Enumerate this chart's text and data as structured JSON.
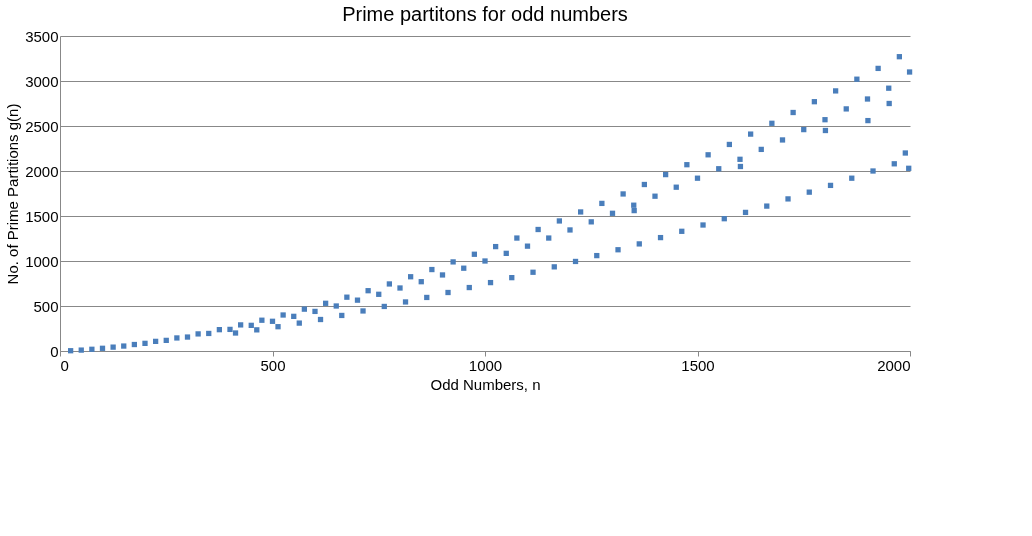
{
  "chart_data": {
    "type": "scatter",
    "title": "Prime partitons for odd numbers",
    "xlabel": "Odd Numbers, n",
    "ylabel": "No. of Prime Partitions  g(n)",
    "xlim": [
      0,
      2000
    ],
    "xticks": [
      0,
      500,
      1000,
      1500,
      2000
    ],
    "ylim": [
      0,
      3500
    ],
    "yticks": [
      0,
      500,
      1000,
      1500,
      2000,
      2500,
      3000,
      3500
    ],
    "grid": "y",
    "marker": "square",
    "series": [
      {
        "color": "#4a7ebb",
        "x": [
          25,
          75,
          125,
          175,
          225,
          275,
          325,
          375,
          425,
          475,
          525,
          575,
          625,
          675,
          725,
          775,
          825,
          875,
          925,
          975,
          1025,
          1075,
          1125,
          1175,
          1225,
          1275,
          1325,
          1375,
          1425,
          1475,
          1525,
          1575,
          1625,
          1675,
          1725,
          1775,
          1825,
          1875,
          1925,
          1975,
          50,
          100,
          150,
          200,
          250,
          300,
          350,
          400,
          450,
          500,
          550,
          600,
          650,
          700,
          750,
          800,
          850,
          900,
          950,
          1000,
          1050,
          1100,
          1150,
          1200,
          1250,
          1300,
          1350,
          1400,
          1450,
          1500,
          1550,
          1600,
          1650,
          1700,
          1750,
          1800,
          1850,
          1900,
          1950,
          1999,
          1351,
          1601,
          1801,
          1901,
          1951,
          413,
          463,
          513,
          563,
          613,
          663,
          713,
          763,
          813,
          863,
          913,
          963,
          1013,
          1063,
          1113,
          1163,
          1213,
          1263,
          1313,
          1363,
          1413,
          1463,
          1513,
          1563,
          1613,
          1663,
          1713,
          1763,
          1813,
          1863,
          1913,
          1963,
          1989,
          1997
        ],
        "values": [
          3,
          19,
          43,
          72,
          107,
          145,
          190,
          237,
          290,
          342,
          400,
          465,
          530,
          598,
          670,
          745,
          825,
          905,
          990,
          1075,
          1160,
          1255,
          1350,
          1445,
          1545,
          1640,
          1745,
          1850,
          1960,
          2070,
          2180,
          2295,
          2410,
          2530,
          2650,
          2770,
          2890,
          3020,
          3140,
          3270,
          10,
          30,
          55,
          85,
          118,
          155,
          195,
          240,
          285,
          330,
          385,
          440,
          500,
          565,
          630,
          700,
          770,
          845,
          920,
          1000,
          1085,
          1165,
          1255,
          1345,
          1435,
          1530,
          1620,
          1720,
          1820,
          1920,
          2025,
          2130,
          2240,
          2345,
          2460,
          2570,
          2690,
          2800,
          2920,
          3100,
          1560,
          2050,
          2450,
          2560,
          2750,
          200,
          235,
          270,
          310,
          350,
          395,
          445,
          495,
          545,
          595,
          650,
          705,
          760,
          815,
          875,
          935,
          995,
          1060,
          1125,
          1190,
          1260,
          1330,
          1400,
          1470,
          1540,
          1610,
          1690,
          1765,
          1840,
          1920,
          2000,
          2080,
          2200,
          2030
        ]
      }
    ]
  }
}
